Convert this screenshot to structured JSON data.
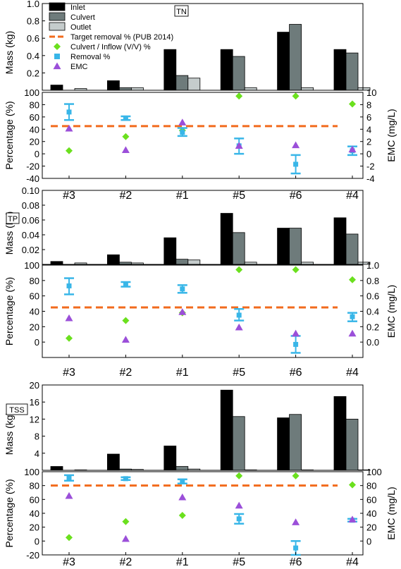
{
  "legend": {
    "inlet": "Inlet",
    "culvert": "Culvert",
    "outlet": "Outlet",
    "target": "Target removal % (PUB 2014)",
    "ratio": "Culvert / Inflow (V/V) %",
    "removal": "Removal %",
    "emc": "EMC"
  },
  "colors": {
    "inlet": "#000000",
    "culvert": "#6e7b7b",
    "outlet": "#c5cccc",
    "target": "#f26b1d",
    "ratio": "#6be01e",
    "removal": "#38b6e8",
    "emc": "#9b4fd9"
  },
  "chart_data": [
    {
      "panel": "TN",
      "categories": [
        "#3",
        "#2",
        "#1",
        "#5",
        "#6",
        "#4"
      ],
      "mass": {
        "type": "bar",
        "ylabel": "Mass (kg)",
        "ylim": [
          0,
          1.0
        ],
        "yticks": [
          "0.2",
          "0.4",
          "0.6",
          "0.8",
          "1.0"
        ],
        "series": [
          {
            "name": "Inlet",
            "values": [
              0.06,
              0.11,
              0.47,
              0.47,
              0.67,
              0.47
            ]
          },
          {
            "name": "Culvert",
            "values": [
              0.0,
              0.03,
              0.17,
              0.39,
              0.76,
              0.43
            ]
          },
          {
            "name": "Outlet",
            "values": [
              0.02,
              0.03,
              0.14,
              0.03,
              0.03,
              0.03
            ]
          }
        ]
      },
      "percent": {
        "type": "scatter",
        "ylabel": "Percentage (%)",
        "ylim": [
          -40,
          100
        ],
        "yticks": [
          "-40",
          "-20",
          "0",
          "20",
          "40",
          "60",
          "80",
          "100"
        ],
        "y2label": "EMC (mg/L)",
        "y2lim": [
          -4,
          10
        ],
        "y2ticks": [
          "-4",
          "-2",
          "0",
          "2",
          "4",
          "6",
          "8",
          "10"
        ],
        "target": 45,
        "ratio": [
          5,
          28,
          38,
          94,
          94,
          81
        ],
        "removal": [
          {
            "value": 68,
            "low": 55,
            "high": 81
          },
          {
            "value": 58,
            "low": 55,
            "high": 61
          },
          {
            "value": 35,
            "low": 29,
            "high": 42
          },
          {
            "value": 13,
            "low": 0,
            "high": 25
          },
          {
            "value": -17,
            "low": -32,
            "high": -2
          },
          {
            "value": 5,
            "low": -2,
            "high": 12
          }
        ],
        "emc": [
          4.1,
          0.6,
          5.1,
          1.3,
          1.4,
          0.7
        ]
      }
    },
    {
      "panel": "TP",
      "categories": [
        "#3",
        "#2",
        "#1",
        "#5",
        "#6",
        "#4"
      ],
      "mass": {
        "type": "bar",
        "ylabel": "Mass (kg)",
        "ylim": [
          0,
          0.1
        ],
        "yticks": [
          "0.02",
          "0.04",
          "0.06",
          "0.08",
          "0.10"
        ],
        "series": [
          {
            "name": "Inlet",
            "values": [
              0.004,
              0.013,
              0.036,
              0.069,
              0.049,
              0.063
            ]
          },
          {
            "name": "Culvert",
            "values": [
              0.0,
              0.003,
              0.007,
              0.043,
              0.049,
              0.041
            ]
          },
          {
            "name": "Outlet",
            "values": [
              0.002,
              0.002,
              0.006,
              0.003,
              0.003,
              0.003
            ]
          }
        ]
      },
      "percent": {
        "type": "scatter",
        "ylabel": "Percentage (%)",
        "ylim": [
          -20,
          100
        ],
        "yticks": [
          "0",
          "20",
          "40",
          "60",
          "80",
          "100"
        ],
        "y2label": "EMC (mg/L)",
        "y2lim": [
          -0.2,
          1.0
        ],
        "y2ticks": [
          "0.0",
          "0.2",
          "0.4",
          "0.6",
          "0.8",
          "1.0"
        ],
        "target": 45,
        "ratio": [
          5,
          28,
          38,
          94,
          94,
          81
        ],
        "removal": [
          {
            "value": 73,
            "low": 62,
            "high": 83
          },
          {
            "value": 75,
            "low": 72,
            "high": 78
          },
          {
            "value": 69,
            "low": 64,
            "high": 74
          },
          {
            "value": 35,
            "low": 28,
            "high": 43
          },
          {
            "value": -3,
            "low": -14,
            "high": 8
          },
          {
            "value": 33,
            "low": 27,
            "high": 38
          }
        ],
        "emc": [
          0.31,
          0.03,
          0.39,
          0.19,
          0.11,
          0.11
        ]
      }
    },
    {
      "panel": "TSS",
      "categories": [
        "#3",
        "#2",
        "#1",
        "#5",
        "#6",
        "#4"
      ],
      "mass": {
        "type": "bar",
        "ylabel": "Mass (kg)",
        "ylim": [
          0,
          20
        ],
        "yticks": [
          "4",
          "8",
          "12",
          "16",
          "20"
        ],
        "series": [
          {
            "name": "Inlet",
            "values": [
              0.9,
              3.8,
              5.7,
              18.8,
              12.3,
              17.3
            ]
          },
          {
            "name": "Culvert",
            "values": [
              0.0,
              0.3,
              0.9,
              12.6,
              13.1,
              12.0
            ]
          },
          {
            "name": "Outlet",
            "values": [
              0.1,
              0.2,
              0.3,
              0.1,
              0.1,
              0.1
            ]
          }
        ]
      },
      "percent": {
        "type": "scatter",
        "ylabel": "Percentage (%)",
        "ylim": [
          -20,
          100
        ],
        "yticks": [
          "-20",
          "0",
          "20",
          "40",
          "60",
          "80",
          "100"
        ],
        "y2label": "EMC (mg/L)",
        "y2lim": [
          -20,
          100
        ],
        "y2ticks": [
          "0",
          "20",
          "40",
          "60",
          "80",
          "100"
        ],
        "target": 80,
        "ratio": [
          5,
          28,
          37,
          94,
          94,
          81
        ],
        "removal": [
          {
            "value": 91,
            "low": 87,
            "high": 95
          },
          {
            "value": 90,
            "low": 88,
            "high": 92
          },
          {
            "value": 86,
            "low": 83,
            "high": 89
          },
          {
            "value": 32,
            "low": 25,
            "high": 39
          },
          {
            "value": -10,
            "low": -20,
            "high": 0
          },
          {
            "value": 30,
            "low": 28,
            "high": 32
          }
        ],
        "emc": [
          65,
          3,
          63,
          51,
          27,
          31
        ]
      }
    }
  ]
}
